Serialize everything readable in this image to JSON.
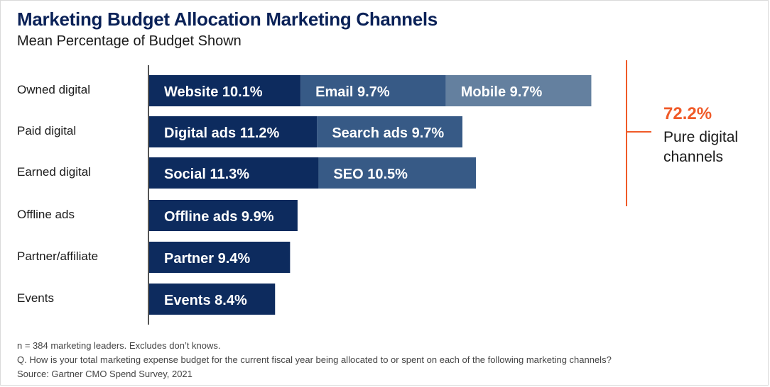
{
  "title": "Marketing Budget Allocation Marketing Channels",
  "subtitle": "Mean Percentage of Budget Shown",
  "colors": {
    "dark": "#0d2b5e",
    "medium": "#375a86",
    "light": "#64809f",
    "accent": "#f05a28",
    "axis": "#555555"
  },
  "chart_data": {
    "type": "bar",
    "orientation": "horizontal",
    "stacked": true,
    "categories": [
      "Owned digital",
      "Paid digital",
      "Earned digital",
      "Offline ads",
      "Partner/affiliate",
      "Events"
    ],
    "segments": [
      [
        {
          "label": "Website 10.1%",
          "value": 10.1,
          "shade": "dark"
        },
        {
          "label": "Email 9.7%",
          "value": 9.7,
          "shade": "medium"
        },
        {
          "label": "Mobile 9.7%",
          "value": 9.7,
          "shade": "light"
        }
      ],
      [
        {
          "label": "Digital ads 11.2%",
          "value": 11.2,
          "shade": "dark"
        },
        {
          "label": "Search ads 9.7%",
          "value": 9.7,
          "shade": "medium"
        }
      ],
      [
        {
          "label": "Social 11.3%",
          "value": 11.3,
          "shade": "dark"
        },
        {
          "label": "SEO 10.5%",
          "value": 10.5,
          "shade": "medium"
        }
      ],
      [
        {
          "label": "Offline ads 9.9%",
          "value": 9.9,
          "shade": "dark"
        }
      ],
      [
        {
          "label": "Partner 9.4%",
          "value": 9.4,
          "shade": "dark"
        }
      ],
      [
        {
          "label": "Events 8.4%",
          "value": 8.4,
          "shade": "dark"
        }
      ]
    ],
    "xlim": [
      0,
      30
    ],
    "grid": false,
    "annotation": {
      "value": "72.2%",
      "text": "Pure digital channels",
      "spans_categories": [
        "Owned digital",
        "Paid digital",
        "Earned digital"
      ]
    }
  },
  "footnotes": [
    "n = 384 marketing leaders. Excludes don’t knows.",
    "Q. How is your total marketing expense budget for the current fiscal year being allocated to or spent on each of the following marketing channels?",
    "Source: Gartner CMO Spend Survey, 2021"
  ]
}
